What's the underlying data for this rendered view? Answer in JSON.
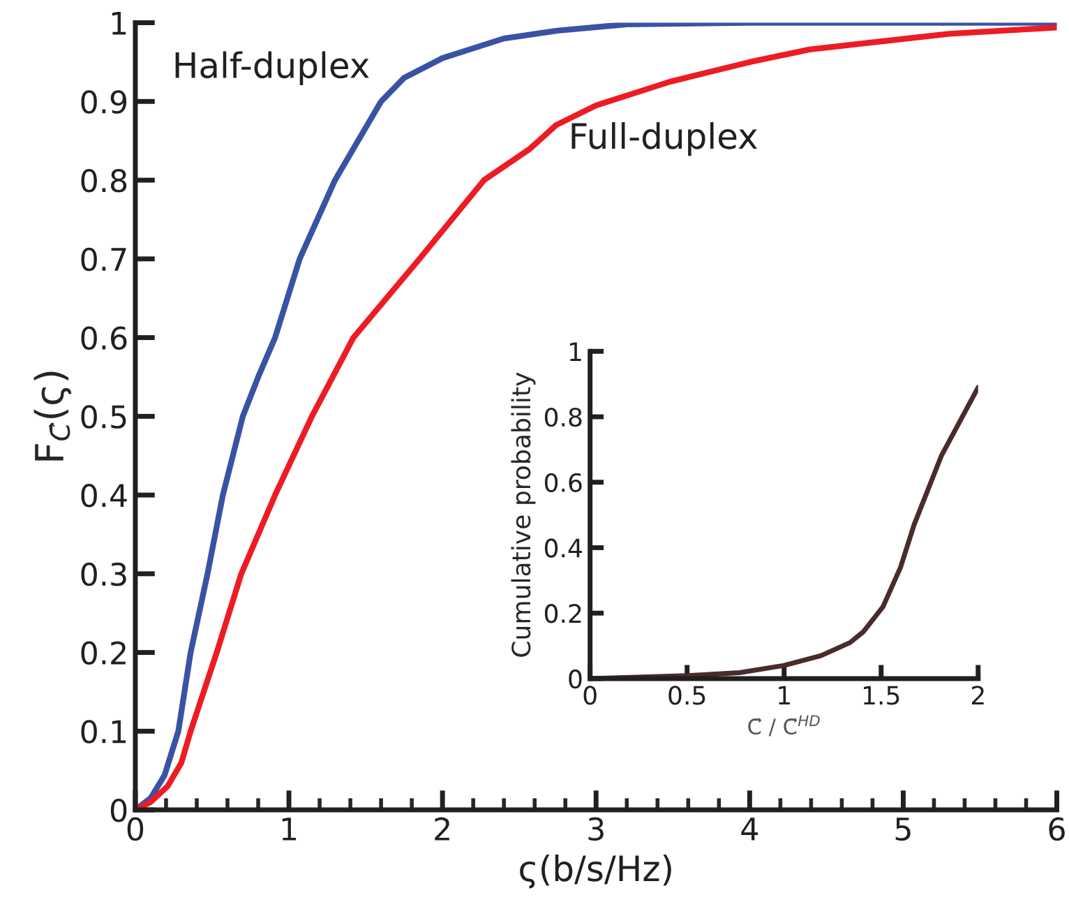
{
  "chart_data": [
    {
      "type": "line",
      "xlabel": "ς(b/s/Hz)",
      "ylabel": "F$_{C⃗}$(ς)",
      "xlim": [
        0,
        6
      ],
      "ylim": [
        0,
        1
      ],
      "xticks": [
        0,
        1,
        2,
        3,
        4,
        5,
        6
      ],
      "yticks": [
        0,
        0.1,
        0.2,
        0.3,
        0.4,
        0.5,
        0.6,
        0.7,
        0.8,
        0.9,
        1
      ],
      "grid": false,
      "legend": false,
      "series": [
        {
          "name": "Half-duplex",
          "color": "#3953a4",
          "x": [
            0,
            0.1,
            0.19,
            0.28,
            0.36,
            0.47,
            0.57,
            0.7,
            0.8,
            0.91,
            1.07,
            1.3,
            1.45,
            1.6,
            1.75,
            2.0,
            2.4,
            2.75,
            3.2,
            4,
            6
          ],
          "values": [
            0,
            0.015,
            0.044,
            0.1,
            0.2,
            0.3,
            0.4,
            0.5,
            0.55,
            0.6,
            0.7,
            0.8,
            0.85,
            0.9,
            0.93,
            0.955,
            0.98,
            0.99,
            0.998,
            1,
            1
          ]
        },
        {
          "name": "Full-duplex",
          "color": "#ed1c24",
          "x": [
            0,
            0.1,
            0.21,
            0.3,
            0.36,
            0.53,
            0.69,
            0.91,
            1.15,
            1.42,
            1.85,
            2.27,
            2.57,
            2.74,
            3.0,
            3.48,
            4.0,
            4.39,
            5.3,
            6
          ],
          "values": [
            0,
            0.01,
            0.03,
            0.06,
            0.1,
            0.2,
            0.3,
            0.4,
            0.5,
            0.6,
            0.7,
            0.8,
            0.84,
            0.87,
            0.895,
            0.925,
            0.95,
            0.966,
            0.986,
            0.994
          ]
        }
      ]
    },
    {
      "type": "line",
      "xlabel": "C⃗ / C⃗$^{HD}$",
      "ylabel": "Cumulative probability",
      "xlim": [
        0,
        2
      ],
      "ylim": [
        0,
        1
      ],
      "xticks": [
        0,
        0.5,
        1,
        1.5,
        2
      ],
      "yticks": [
        0,
        0.2,
        0.4,
        0.6,
        0.8,
        1
      ],
      "grid": false,
      "legend": false,
      "series": [
        {
          "color": "#4a2b2b",
          "x": [
            0,
            0.5,
            0.77,
            1.0,
            1.19,
            1.34,
            1.41,
            1.51,
            1.6,
            1.67,
            1.81,
            2.0
          ],
          "values": [
            0,
            0.009,
            0.018,
            0.04,
            0.07,
            0.11,
            0.144,
            0.22,
            0.34,
            0.47,
            0.68,
            0.89
          ]
        }
      ]
    }
  ]
}
